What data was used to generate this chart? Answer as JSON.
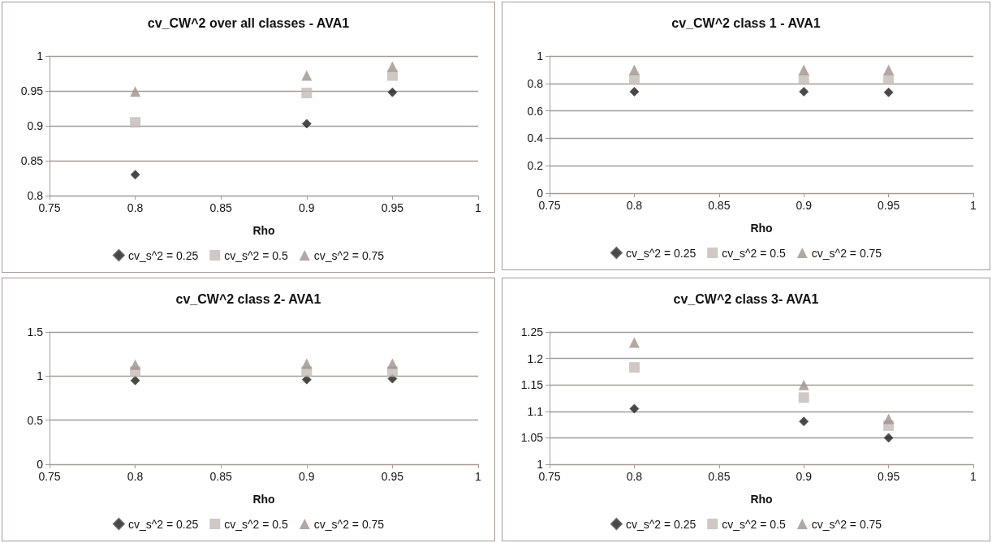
{
  "chart_data": [
    {
      "type": "scatter",
      "title": "cv_CW^2 over all classes - AVA1",
      "xlabel": "Rho",
      "x": [
        0.8,
        0.9,
        0.95
      ],
      "xlim": [
        0.75,
        1
      ],
      "xticks": [
        0.75,
        0.8,
        0.85,
        0.9,
        0.95,
        1
      ],
      "ylim": [
        0.8,
        1
      ],
      "yticks": [
        0.8,
        0.85,
        0.9,
        0.95,
        1
      ],
      "grid": "y",
      "legend": "bottom",
      "series": [
        {
          "name": "cv_s^2 = 0.25",
          "color": "#1a1a1a",
          "marker": "diamond",
          "values": [
            0.83,
            0.903,
            0.948
          ]
        },
        {
          "name": "cv_s^2 = 0.5",
          "color": "#c3bbb7",
          "marker": "square",
          "values": [
            0.905,
            0.947,
            0.972
          ]
        },
        {
          "name": "cv_s^2 = 0.75",
          "color": "#9d928d",
          "marker": "triangle",
          "values": [
            0.949,
            0.972,
            0.985
          ]
        }
      ]
    },
    {
      "type": "scatter",
      "title": "cv_CW^2 class 1 - AVA1",
      "xlabel": "Rho",
      "x": [
        0.8,
        0.9,
        0.95
      ],
      "xlim": [
        0.75,
        1
      ],
      "xticks": [
        0.75,
        0.8,
        0.85,
        0.9,
        0.95,
        1
      ],
      "ylim": [
        0,
        1
      ],
      "yticks": [
        0,
        0.2,
        0.4,
        0.6,
        0.8,
        1
      ],
      "grid": "y",
      "legend": "bottom",
      "series": [
        {
          "name": "cv_s^2 = 0.25",
          "color": "#1a1a1a",
          "marker": "diamond",
          "values": [
            0.74,
            0.74,
            0.735
          ]
        },
        {
          "name": "cv_s^2 = 0.5",
          "color": "#c3bbb7",
          "marker": "square",
          "values": [
            0.83,
            0.83,
            0.83
          ]
        },
        {
          "name": "cv_s^2 = 0.75",
          "color": "#9d928d",
          "marker": "triangle",
          "values": [
            0.9,
            0.9,
            0.9
          ]
        }
      ]
    },
    {
      "type": "scatter",
      "title": "cv_CW^2 class 2- AVA1",
      "xlabel": "Rho",
      "x": [
        0.8,
        0.9,
        0.95
      ],
      "xlim": [
        0.75,
        1
      ],
      "xticks": [
        0.75,
        0.8,
        0.85,
        0.9,
        0.95,
        1
      ],
      "ylim": [
        0,
        1.5
      ],
      "yticks": [
        0,
        0.5,
        1,
        1.5
      ],
      "grid": "y",
      "legend": "bottom",
      "series": [
        {
          "name": "cv_s^2 = 0.25",
          "color": "#1a1a1a",
          "marker": "diamond",
          "values": [
            0.95,
            0.96,
            0.97
          ]
        },
        {
          "name": "cv_s^2 = 0.5",
          "color": "#c3bbb7",
          "marker": "square",
          "values": [
            1.05,
            1.05,
            1.05
          ]
        },
        {
          "name": "cv_s^2 = 0.75",
          "color": "#9d928d",
          "marker": "triangle",
          "values": [
            1.13,
            1.14,
            1.14
          ]
        }
      ]
    },
    {
      "type": "scatter",
      "title": "cv_CW^2 class 3- AVA1",
      "xlabel": "Rho",
      "x": [
        0.8,
        0.9,
        0.95
      ],
      "xlim": [
        0.75,
        1
      ],
      "xticks": [
        0.75,
        0.8,
        0.85,
        0.9,
        0.95,
        1
      ],
      "ylim": [
        1,
        1.25
      ],
      "yticks": [
        1,
        1.05,
        1.1,
        1.15,
        1.2,
        1.25
      ],
      "grid": "y",
      "legend": "bottom",
      "series": [
        {
          "name": "cv_s^2 = 0.25",
          "color": "#1a1a1a",
          "marker": "diamond",
          "values": [
            1.105,
            1.081,
            1.05
          ]
        },
        {
          "name": "cv_s^2 = 0.5",
          "color": "#c3bbb7",
          "marker": "square",
          "values": [
            1.183,
            1.126,
            1.073
          ]
        },
        {
          "name": "cv_s^2 = 0.75",
          "color": "#9d928d",
          "marker": "triangle",
          "values": [
            1.23,
            1.15,
            1.086
          ]
        }
      ]
    }
  ]
}
